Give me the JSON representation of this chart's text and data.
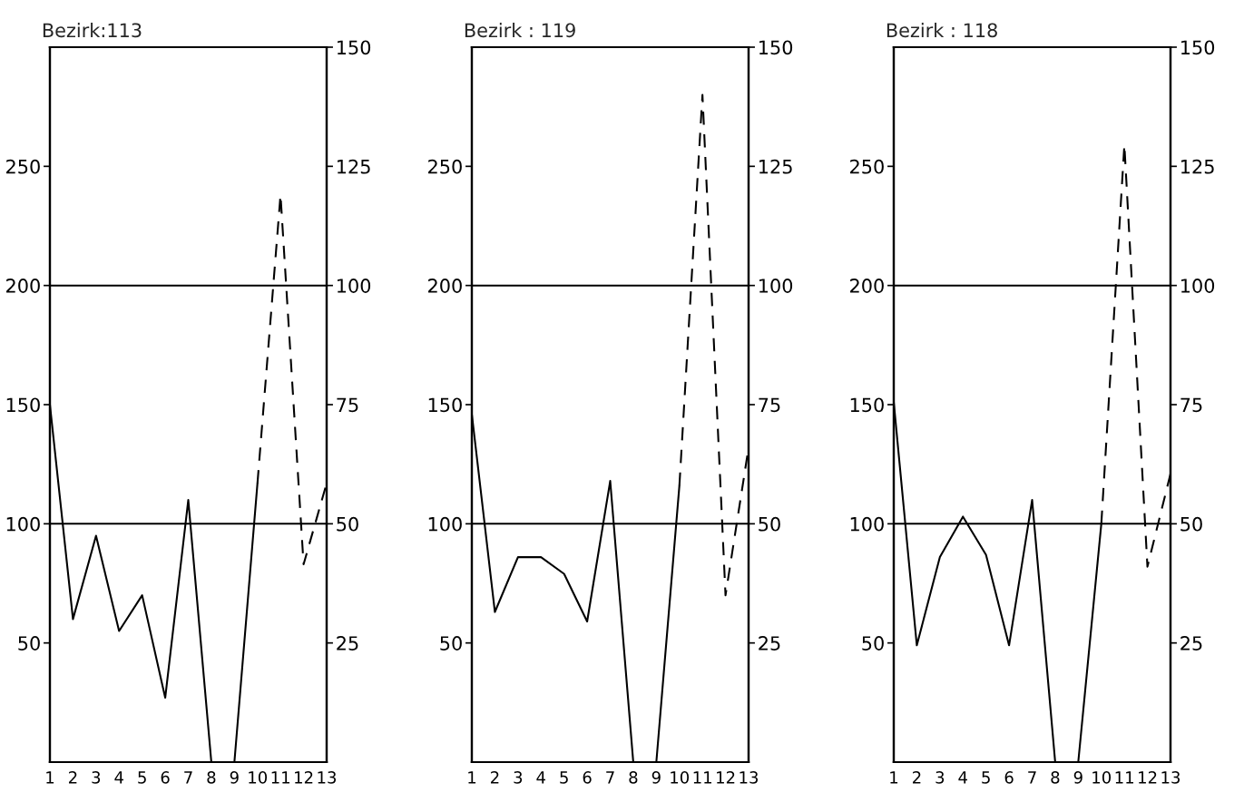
{
  "chart_data": [
    {
      "type": "line",
      "title": "Bezirk:113",
      "xlim": [
        1,
        13
      ],
      "xticks": [
        1,
        2,
        3,
        4,
        5,
        6,
        7,
        8,
        9,
        10,
        11,
        12,
        13
      ],
      "ylim": [
        0,
        300
      ],
      "yticks": [
        50,
        100,
        150,
        200,
        250
      ],
      "y2lim": [
        0,
        150
      ],
      "y2ticks": [
        25,
        50,
        75,
        100,
        125,
        150
      ],
      "grid": false,
      "legend": false,
      "marker": "none",
      "series": [
        {
          "x": [
            1,
            2,
            3,
            4,
            5,
            6,
            7,
            8,
            9,
            10
          ],
          "values": [
            150,
            60,
            95,
            55,
            70,
            27,
            110,
            0,
            0,
            117
          ],
          "color": "#000000",
          "line_style": "solid"
        },
        {
          "x": [
            10,
            11,
            12,
            13
          ],
          "values": [
            117,
            238,
            83,
            117
          ],
          "color": "#000000",
          "line_style": "dashed"
        }
      ],
      "ref_lines": [
        {
          "axis": "y",
          "value": 100,
          "label": null
        },
        {
          "axis": "y",
          "value": 200,
          "label": null
        }
      ]
    },
    {
      "type": "line",
      "title": "Bezirk : 119",
      "xlim": [
        1,
        13
      ],
      "xticks": [
        1,
        2,
        3,
        4,
        5,
        6,
        7,
        8,
        9,
        10,
        11,
        12,
        13
      ],
      "ylim": [
        0,
        300
      ],
      "yticks": [
        50,
        100,
        150,
        200,
        250
      ],
      "y2lim": [
        0,
        150
      ],
      "y2ticks": [
        25,
        50,
        75,
        100,
        125,
        150
      ],
      "grid": false,
      "legend": false,
      "marker": "none",
      "series": [
        {
          "x": [
            1,
            2,
            3,
            4,
            5,
            6,
            7,
            8,
            9,
            10
          ],
          "values": [
            146,
            63,
            86,
            86,
            79,
            59,
            118,
            0,
            0,
            116
          ],
          "color": "#000000",
          "line_style": "solid"
        },
        {
          "x": [
            10,
            11,
            12,
            13
          ],
          "values": [
            116,
            280,
            70,
            132
          ],
          "color": "#000000",
          "line_style": "dashed"
        }
      ],
      "ref_lines": [
        {
          "axis": "y",
          "value": 100,
          "label": null
        },
        {
          "axis": "y",
          "value": 200,
          "label": null
        }
      ]
    },
    {
      "type": "line",
      "title": "Bezirk : 118",
      "xlim": [
        1,
        13
      ],
      "xticks": [
        1,
        2,
        3,
        4,
        5,
        6,
        7,
        8,
        9,
        10,
        11,
        12,
        13
      ],
      "ylim": [
        0,
        300
      ],
      "yticks": [
        50,
        100,
        150,
        200,
        250
      ],
      "y2lim": [
        0,
        150
      ],
      "y2ticks": [
        25,
        50,
        75,
        100,
        125,
        150
      ],
      "grid": false,
      "legend": false,
      "marker": "none",
      "series": [
        {
          "x": [
            1,
            2,
            3,
            4,
            5,
            6,
            7,
            8,
            9,
            10
          ],
          "values": [
            151,
            49,
            86,
            103,
            87,
            49,
            110,
            0,
            0,
            100
          ],
          "color": "#000000",
          "line_style": "solid"
        },
        {
          "x": [
            10,
            11,
            12,
            13
          ],
          "values": [
            100,
            259,
            82,
            121
          ],
          "color": "#000000",
          "line_style": "dashed"
        }
      ],
      "ref_lines": [
        {
          "axis": "y",
          "value": 100,
          "label": null
        },
        {
          "axis": "y",
          "value": 200,
          "label": null
        }
      ]
    }
  ]
}
